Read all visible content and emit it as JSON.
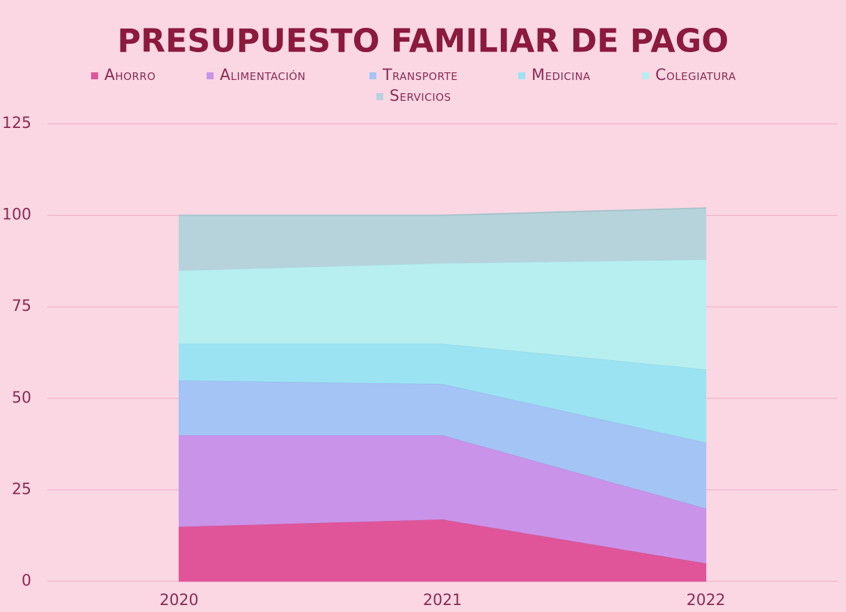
{
  "chart_data": {
    "type": "stacked_area",
    "title": "PRESUPUESTO FAMILIAR DE PAGO",
    "categories": [
      "2020",
      "2021",
      "2022"
    ],
    "series": [
      {
        "name": "Ahorro",
        "color": "#e0559a",
        "values": [
          15,
          17,
          5
        ]
      },
      {
        "name": "Alimentación",
        "color": "#c993ea",
        "values": [
          25,
          23,
          15
        ]
      },
      {
        "name": "Transporte",
        "color": "#a3c4f5",
        "values": [
          15,
          14,
          18
        ]
      },
      {
        "name": "Medicina",
        "color": "#9be3f3",
        "values": [
          10,
          11,
          20
        ]
      },
      {
        "name": "Colegiatura",
        "color": "#b7eef0",
        "values": [
          20,
          22,
          30
        ]
      },
      {
        "name": "Servicios",
        "color": "#b6d3dc",
        "values": [
          15,
          13,
          14
        ]
      }
    ],
    "ylim": [
      0,
      125
    ],
    "yticks": [
      0,
      25,
      50,
      75,
      100,
      125
    ],
    "grid": true,
    "legend": "top"
  }
}
